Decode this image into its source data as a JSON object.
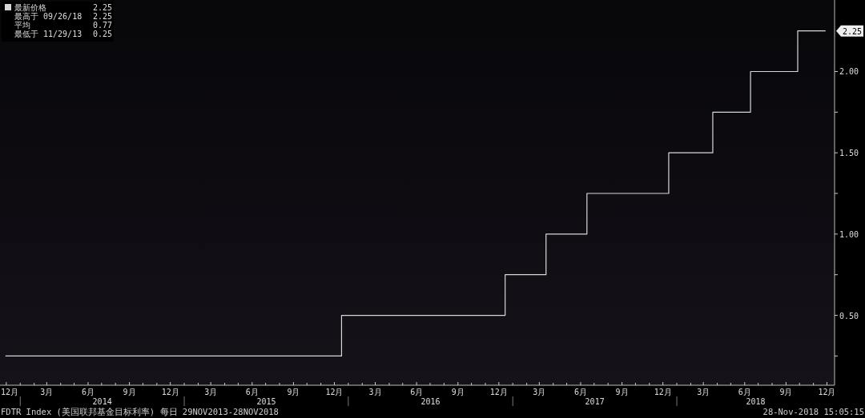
{
  "chart_data": {
    "type": "step",
    "legend": "top left",
    "marker": "none",
    "line_style": "solid",
    "grid": false,
    "series": [
      {
        "name": "最新价格",
        "color": "#d8d8d8",
        "x": [
          "2013-11-29",
          "2015-12-17",
          "2016-12-15",
          "2017-03-16",
          "2017-06-15",
          "2017-12-14",
          "2018-03-22",
          "2018-06-14",
          "2018-09-27",
          "2018-11-28"
        ],
        "values": [
          0.25,
          0.5,
          0.75,
          1.0,
          1.25,
          1.5,
          1.75,
          2.0,
          2.25,
          2.25
        ]
      }
    ],
    "xlim": [
      "2013-11-17",
      "2018-12-18"
    ],
    "xticks": [
      {
        "value": "2013-12-01",
        "label": "12月"
      },
      {
        "value": "2014-01-01",
        "label": null
      },
      {
        "value": "2014-02-01",
        "label": null
      },
      {
        "value": "2014-03-01",
        "label": "3月"
      },
      {
        "value": "2014-04-01",
        "label": null
      },
      {
        "value": "2014-05-01",
        "label": null
      },
      {
        "value": "2014-06-01",
        "label": "6月"
      },
      {
        "value": "2014-07-01",
        "label": null
      },
      {
        "value": "2014-08-01",
        "label": null
      },
      {
        "value": "2014-09-01",
        "label": "9月"
      },
      {
        "value": "2014-10-01",
        "label": null
      },
      {
        "value": "2014-11-01",
        "label": null
      },
      {
        "value": "2014-12-01",
        "label": "12月"
      },
      {
        "value": "2015-01-01",
        "label": null
      },
      {
        "value": "2015-02-01",
        "label": null
      },
      {
        "value": "2015-03-01",
        "label": "3月"
      },
      {
        "value": "2015-04-01",
        "label": null
      },
      {
        "value": "2015-05-01",
        "label": null
      },
      {
        "value": "2015-06-01",
        "label": "6月"
      },
      {
        "value": "2015-07-01",
        "label": null
      },
      {
        "value": "2015-08-01",
        "label": null
      },
      {
        "value": "2015-09-01",
        "label": "9月"
      },
      {
        "value": "2015-10-01",
        "label": null
      },
      {
        "value": "2015-11-01",
        "label": null
      },
      {
        "value": "2015-12-01",
        "label": "12月"
      },
      {
        "value": "2016-01-01",
        "label": null
      },
      {
        "value": "2016-02-01",
        "label": null
      },
      {
        "value": "2016-03-01",
        "label": "3月"
      },
      {
        "value": "2016-04-01",
        "label": null
      },
      {
        "value": "2016-05-01",
        "label": null
      },
      {
        "value": "2016-06-01",
        "label": "6月"
      },
      {
        "value": "2016-07-01",
        "label": null
      },
      {
        "value": "2016-08-01",
        "label": null
      },
      {
        "value": "2016-09-01",
        "label": "9月"
      },
      {
        "value": "2016-10-01",
        "label": null
      },
      {
        "value": "2016-11-01",
        "label": null
      },
      {
        "value": "2016-12-01",
        "label": "12月"
      },
      {
        "value": "2017-01-01",
        "label": null
      },
      {
        "value": "2017-02-01",
        "label": null
      },
      {
        "value": "2017-03-01",
        "label": "3月"
      },
      {
        "value": "2017-04-01",
        "label": null
      },
      {
        "value": "2017-05-01",
        "label": null
      },
      {
        "value": "2017-06-01",
        "label": "6月"
      },
      {
        "value": "2017-07-01",
        "label": null
      },
      {
        "value": "2017-08-01",
        "label": null
      },
      {
        "value": "2017-09-01",
        "label": "9月"
      },
      {
        "value": "2017-10-01",
        "label": null
      },
      {
        "value": "2017-11-01",
        "label": null
      },
      {
        "value": "2017-12-01",
        "label": "12月"
      },
      {
        "value": "2018-01-01",
        "label": null
      },
      {
        "value": "2018-02-01",
        "label": null
      },
      {
        "value": "2018-03-01",
        "label": "3月"
      },
      {
        "value": "2018-04-01",
        "label": null
      },
      {
        "value": "2018-05-01",
        "label": null
      },
      {
        "value": "2018-06-01",
        "label": "6月"
      },
      {
        "value": "2018-07-01",
        "label": null
      },
      {
        "value": "2018-08-01",
        "label": null
      },
      {
        "value": "2018-09-01",
        "label": "9月"
      },
      {
        "value": "2018-10-01",
        "label": null
      },
      {
        "value": "2018-11-01",
        "label": null
      },
      {
        "value": "2018-12-01",
        "label": "12月"
      }
    ],
    "ylim": [
      0.07,
      2.44
    ],
    "yticks": [
      {
        "value": 0.25,
        "label": null
      },
      {
        "value": 0.5,
        "label": "0.50"
      },
      {
        "value": 0.75,
        "label": null
      },
      {
        "value": 1.0,
        "label": "1.00"
      },
      {
        "value": 1.25,
        "label": null
      },
      {
        "value": 1.5,
        "label": "1.50"
      },
      {
        "value": 1.75,
        "label": null
      },
      {
        "value": 2.0,
        "label": "2.00"
      }
    ],
    "annotations": [
      {
        "text": "2.25",
        "x": "2018-11-28",
        "y": 2.25
      },
      "最高于 09/26/18 2.25",
      "平均 0.77",
      "最低于 11/29/13 0.25",
      "2014",
      "2015",
      "2016",
      "2017",
      "2018",
      "FDTR Index (美国联邦基金目标利率) 每日 29NOV2013-28NOV2018",
      "28-Nov-2018 15:05:15"
    ]
  }
}
